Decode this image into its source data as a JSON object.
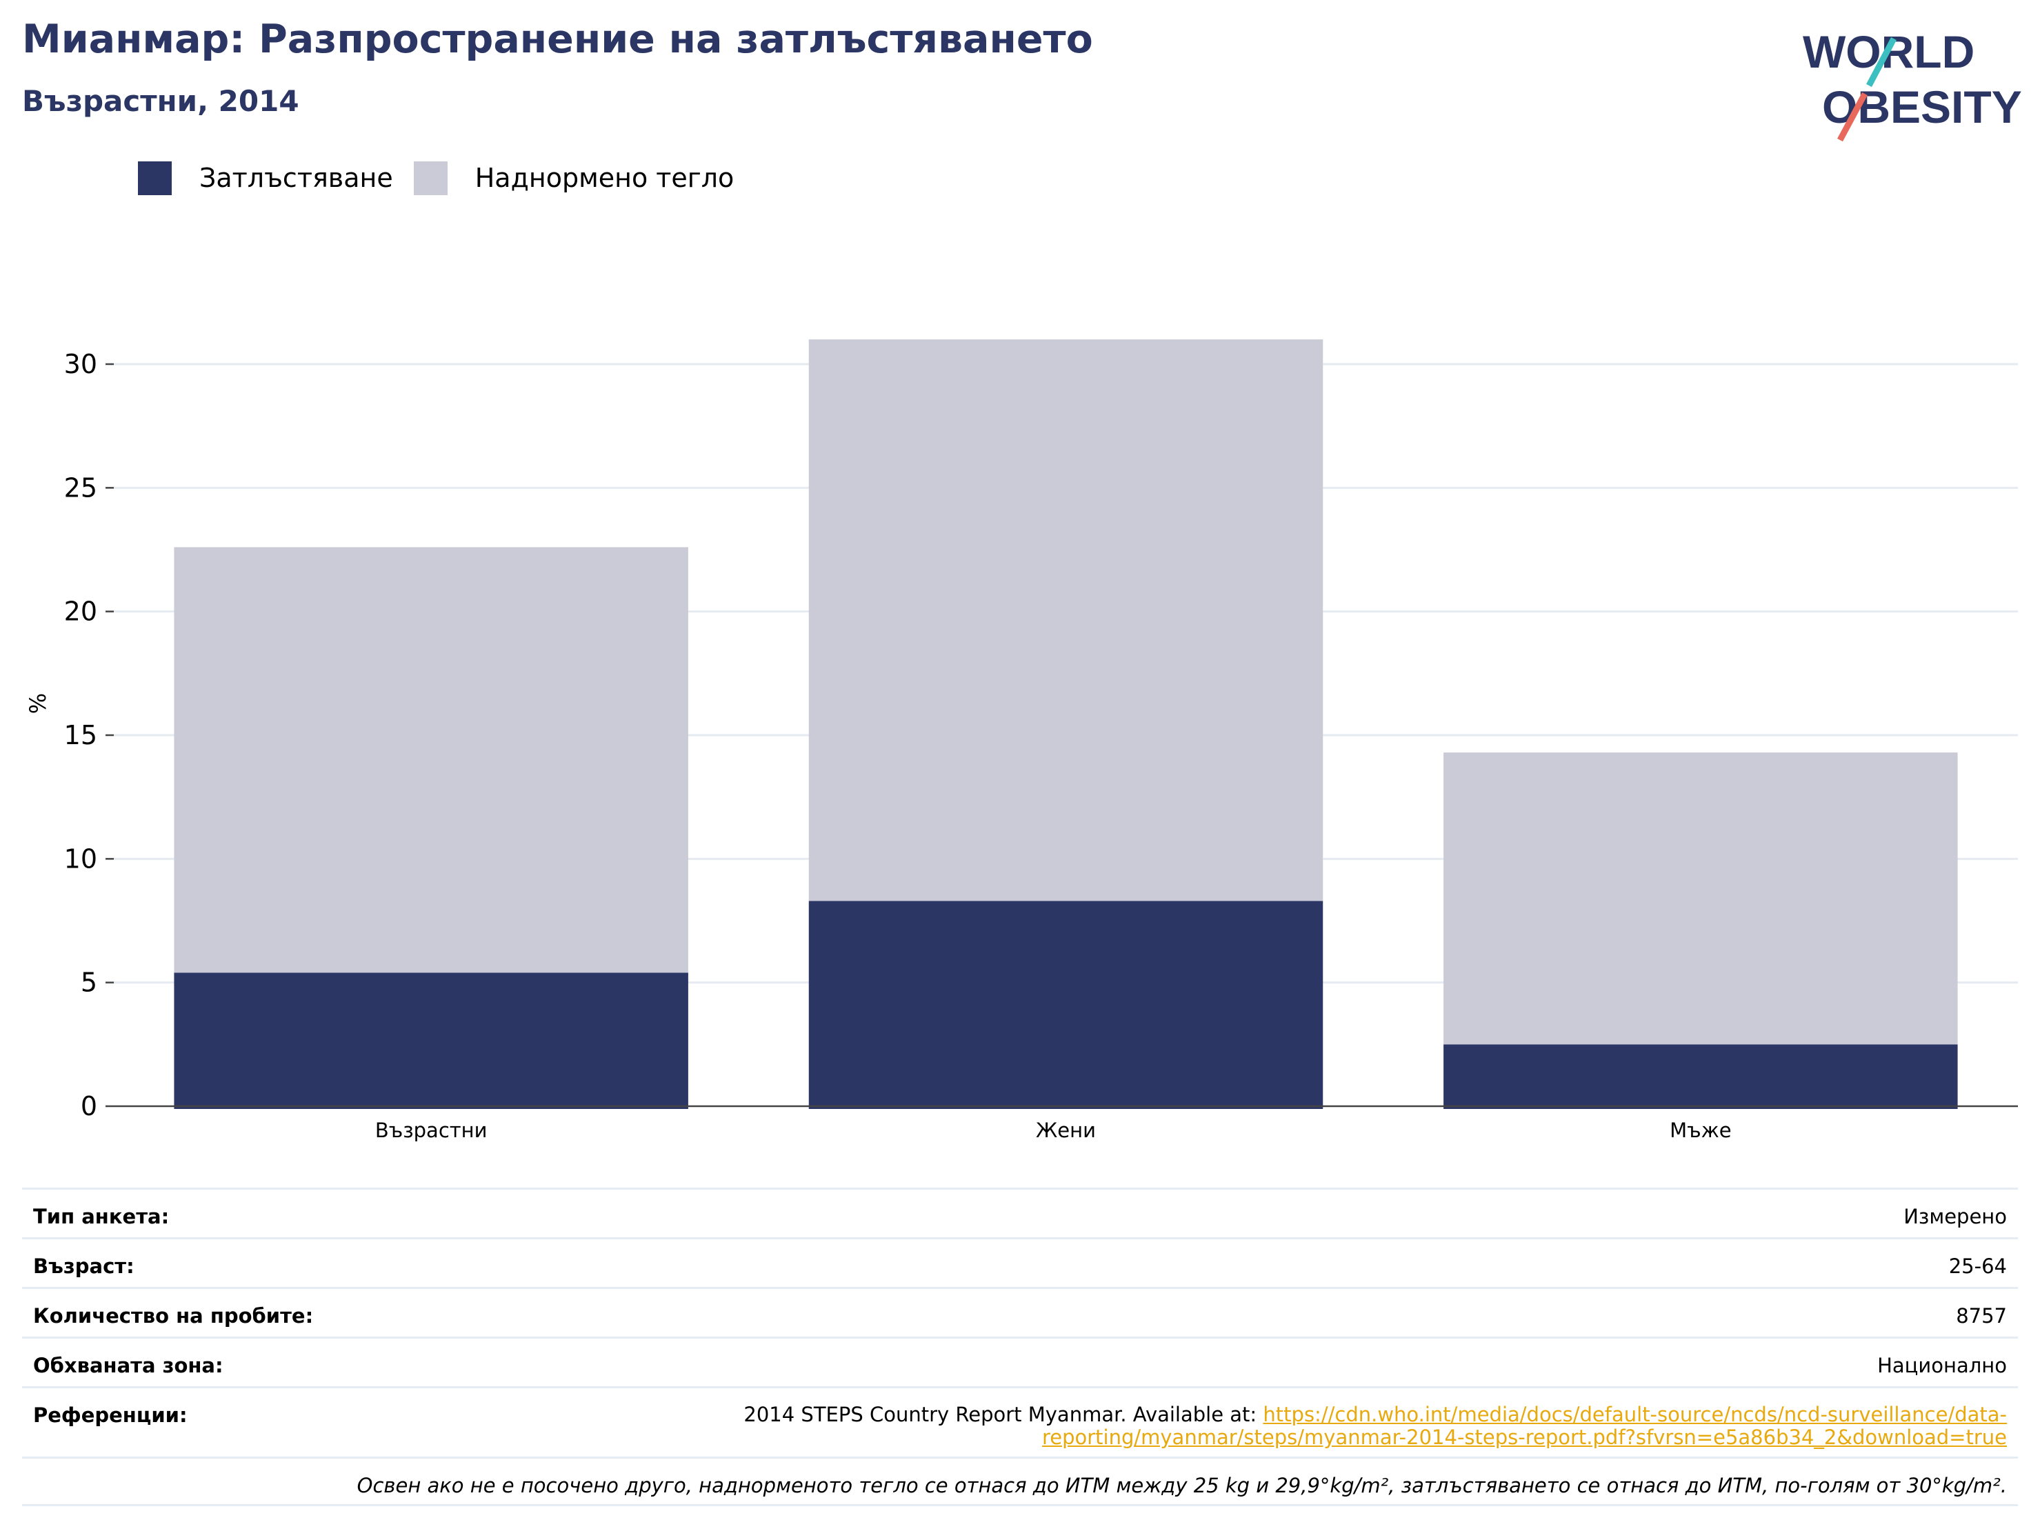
{
  "header": {
    "title": "Мианмар: Разпространение на затлъстяването",
    "subtitle": "Възрастни, 2014"
  },
  "logo": {
    "line1": "WORLD",
    "line2": "OBESITY"
  },
  "colors": {
    "obesity": "#2b3665",
    "overweight": "#cacbd7",
    "title": "#2b3665",
    "link": "#e8a90f",
    "logo_teal": "#3cbfc0",
    "logo_red": "#e8685c"
  },
  "chart_data": {
    "type": "bar",
    "stacked": true,
    "categories": [
      "Възрастни",
      "Жени",
      "Мъже"
    ],
    "series": [
      {
        "name": "Затлъстяване",
        "values": [
          5.4,
          8.3,
          2.5
        ]
      },
      {
        "name": "Наднормено тегло",
        "values": [
          17.2,
          22.7,
          11.8
        ]
      }
    ],
    "ylabel": "%",
    "ylim": [
      0,
      30
    ],
    "yticks": [
      0,
      5,
      10,
      15,
      20,
      25,
      30
    ],
    "grid": true,
    "legend": "top-left"
  },
  "info": {
    "survey_type_label": "Тип анкета:",
    "survey_type_value": "Измерено",
    "age_label": "Възраст:",
    "age_value": "25-64",
    "sample_label": "Количество на пробите:",
    "sample_value": "8757",
    "area_label": "Обхваната зона:",
    "area_value": "Национално",
    "ref_label": "Референции:",
    "ref_text": "2014 STEPS Country Report Myanmar. Available at: ",
    "ref_link_line1": "https://cdn.who.int/media/docs/default-source/ncds/ncd-surveillance/data-",
    "ref_link_line2": "reporting/myanmar/steps/myanmar-2014-steps-report.pdf?sfvrsn=e5a86b34_2&download=true",
    "note": "Освен ако не е посочено друго, наднорменото тегло се отнася до ИТМ между 25 kg и 29,9°kg/m², затлъстяването се отнася до ИТМ, по-голям от 30°kg/m²."
  }
}
